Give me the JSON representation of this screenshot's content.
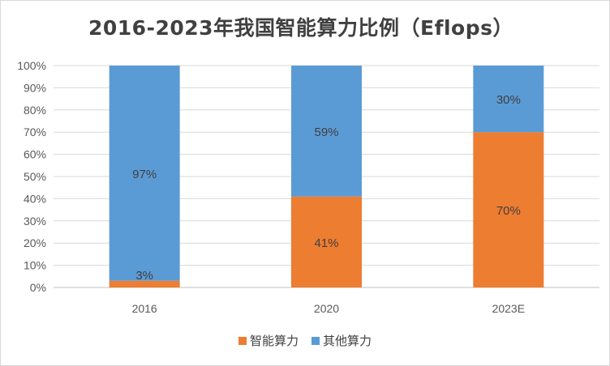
{
  "chart_data": {
    "type": "bar",
    "stacked": true,
    "title": "2016-2023年我国智能算力比例（Eflops）",
    "categories": [
      "2016",
      "2020",
      "2023E"
    ],
    "series": [
      {
        "name": "智能算力",
        "values": [
          3,
          41,
          70
        ],
        "labels": [
          "3%",
          "41%",
          "70%"
        ],
        "color": "#ED7D31"
      },
      {
        "name": "其他算力",
        "values": [
          97,
          59,
          30
        ],
        "labels": [
          "97%",
          "59%",
          "30%"
        ],
        "color": "#5B9BD5"
      }
    ],
    "ylim": [
      0,
      100
    ],
    "yticks": [
      "0%",
      "10%",
      "20%",
      "30%",
      "40%",
      "50%",
      "60%",
      "70%",
      "80%",
      "90%",
      "100%"
    ],
    "grid": true,
    "legend": "bottom"
  }
}
